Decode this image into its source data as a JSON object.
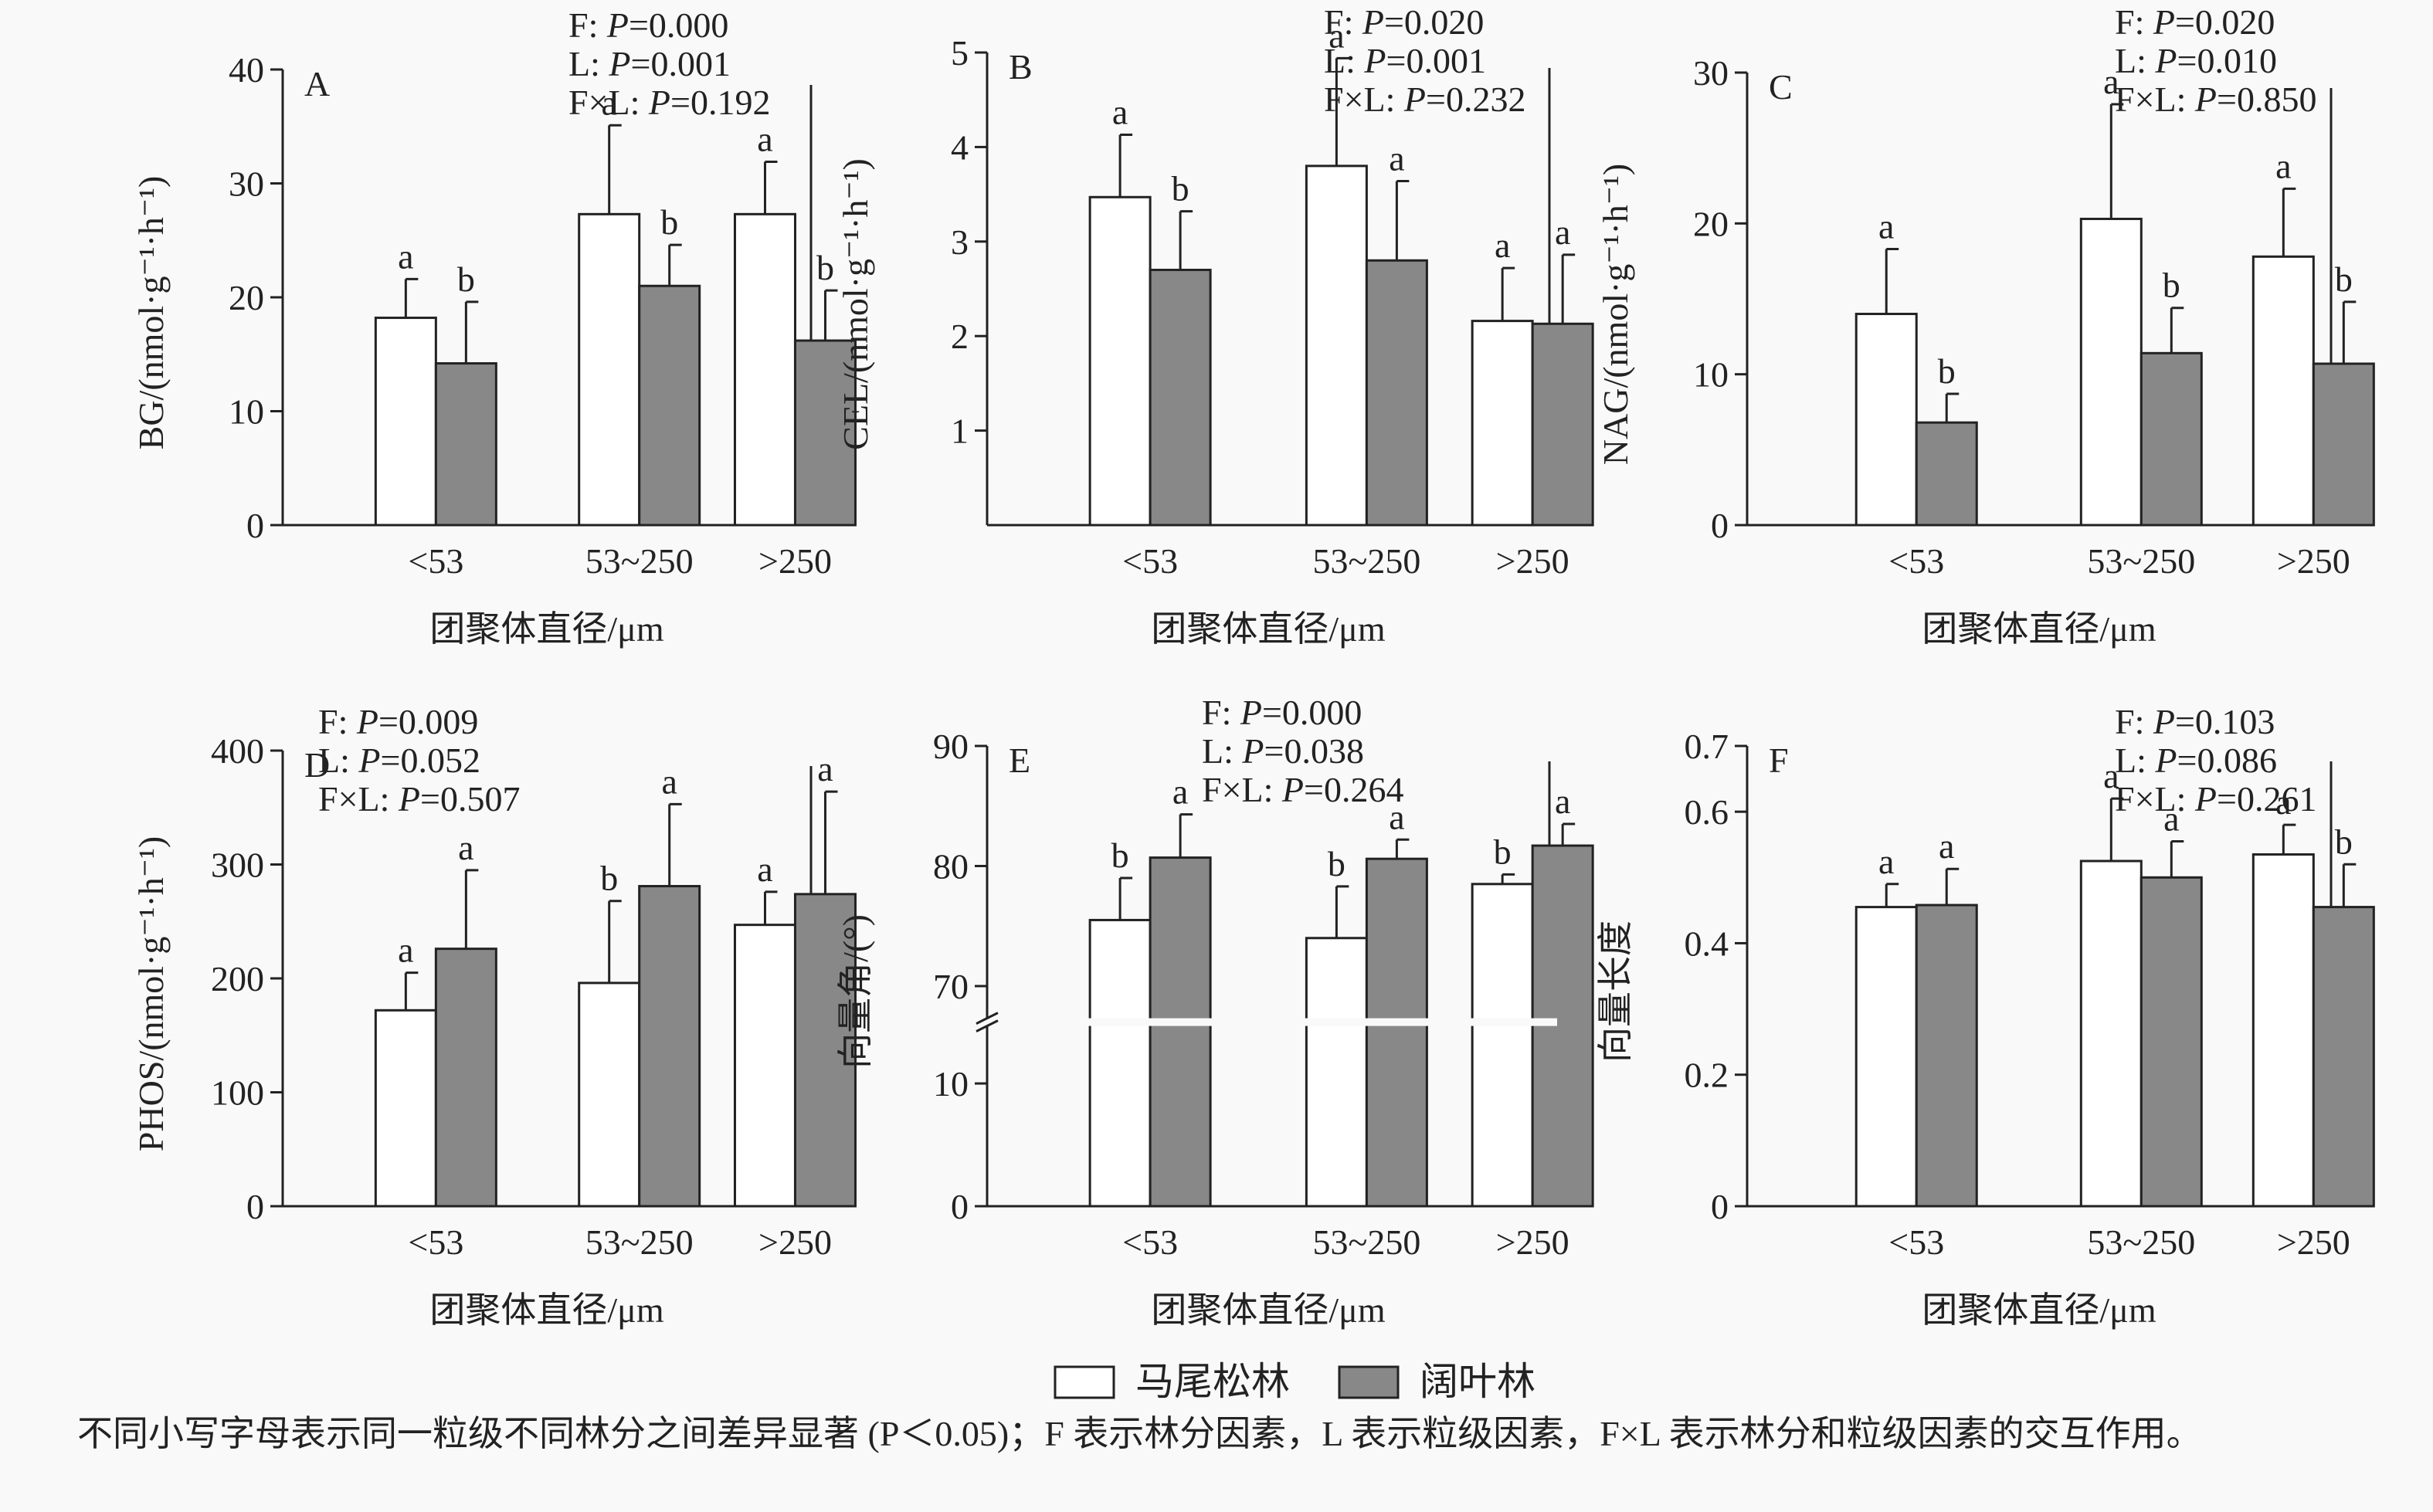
{
  "legend": {
    "series": [
      {
        "name": "马尾松林",
        "color": "#ffffff"
      },
      {
        "name": "阔叶林",
        "color": "#888888"
      }
    ]
  },
  "footnote": "不同小写字母表示同一粒级不同林分之间差异显著 (P＜0.05)；F 表示林分因素，L 表示粒级因素，F×L 表示林分和粒级因素的交互作用。",
  "chart_data": [
    {
      "type": "bar",
      "panel": "A",
      "ylabel": "BG/(nmol·g⁻¹·h⁻¹)",
      "xlabel": "团聚体直径/μm",
      "categories": [
        "<53",
        "53~250",
        ">250"
      ],
      "ylim": [
        0,
        40
      ],
      "yticks": [
        0,
        10,
        20,
        30,
        40
      ],
      "series": [
        {
          "name": "马尾松林",
          "values": [
            18.2,
            27.3,
            27.3
          ],
          "errors": [
            3.4,
            7.8,
            4.6
          ],
          "letters": [
            "a",
            "a",
            "a"
          ]
        },
        {
          "name": "阔叶林",
          "values": [
            14.2,
            21.0,
            16.2
          ],
          "errors": [
            5.4,
            3.6,
            4.4
          ],
          "letters": [
            "b",
            "b",
            "b"
          ]
        }
      ],
      "stats": [
        {
          "prefix": "F: ",
          "p": "P",
          "value": "=0.000"
        },
        {
          "prefix": "L: ",
          "p": "P",
          "value": "=0.001"
        },
        {
          "prefix": "F×L: ",
          "p": "P",
          "value": "=0.192"
        }
      ]
    },
    {
      "type": "bar",
      "panel": "B",
      "ylabel": "CEL/(nmol·g⁻¹·h⁻¹)",
      "xlabel": "团聚体直径/μm",
      "categories": [
        "<53",
        "53~250",
        ">250"
      ],
      "ylim": [
        0,
        5
      ],
      "yticks": [
        1,
        2,
        3,
        4,
        5
      ],
      "series": [
        {
          "name": "马尾松林",
          "values": [
            3.47,
            3.8,
            2.16
          ],
          "errors": [
            0.66,
            1.14,
            0.56
          ],
          "letters": [
            "a",
            "a",
            "a"
          ]
        },
        {
          "name": "阔叶林",
          "values": [
            2.7,
            2.8,
            2.13
          ],
          "errors": [
            0.62,
            0.84,
            0.73
          ],
          "letters": [
            "b",
            "a",
            "a"
          ]
        }
      ],
      "stats": [
        {
          "prefix": "F: ",
          "p": "P",
          "value": "=0.020"
        },
        {
          "prefix": "L: ",
          "p": "P",
          "value": "=0.001"
        },
        {
          "prefix": "F×L: ",
          "p": "P",
          "value": "=0.232"
        }
      ]
    },
    {
      "type": "bar",
      "panel": "C",
      "ylabel": "NAG/(nmol·g⁻¹·h⁻¹)",
      "xlabel": "团聚体直径/μm",
      "categories": [
        "<53",
        "53~250",
        ">250"
      ],
      "ylim": [
        0,
        30
      ],
      "yticks": [
        0,
        10,
        20,
        30
      ],
      "series": [
        {
          "name": "马尾松林",
          "values": [
            14.0,
            20.3,
            17.8
          ],
          "errors": [
            4.3,
            7.6,
            4.5
          ],
          "letters": [
            "a",
            "a",
            "a"
          ]
        },
        {
          "name": "阔叶林",
          "values": [
            6.8,
            11.4,
            10.7
          ],
          "errors": [
            1.9,
            3.0,
            4.1
          ],
          "letters": [
            "b",
            "b",
            "b"
          ]
        }
      ],
      "stats": [
        {
          "prefix": "F: ",
          "p": "P",
          "value": "=0.020"
        },
        {
          "prefix": "L: ",
          "p": "P",
          "value": "=0.010"
        },
        {
          "prefix": "F×L: ",
          "p": "P",
          "value": "=0.850"
        }
      ]
    },
    {
      "type": "bar",
      "panel": "D",
      "ylabel": "PHOS/(nmol·g⁻¹·h⁻¹)",
      "xlabel": "团聚体直径/μm",
      "categories": [
        "<53",
        "53~250",
        ">250"
      ],
      "ylim": [
        0,
        400
      ],
      "yticks": [
        0,
        100,
        200,
        300,
        400
      ],
      "series": [
        {
          "name": "马尾松林",
          "values": [
            172,
            196,
            247
          ],
          "errors": [
            33,
            72,
            29
          ],
          "letters": [
            "a",
            "b",
            "a"
          ]
        },
        {
          "name": "阔叶林",
          "values": [
            226,
            281,
            274
          ],
          "errors": [
            69,
            72,
            90
          ],
          "letters": [
            "a",
            "a",
            "a"
          ]
        }
      ],
      "stats": [
        {
          "prefix": "F: ",
          "p": "P",
          "value": "=0.009"
        },
        {
          "prefix": "L: ",
          "p": "P",
          "value": "=0.052"
        },
        {
          "prefix": "F×L: ",
          "p": "P",
          "value": "=0.507"
        }
      ]
    },
    {
      "type": "bar",
      "panel": "E",
      "ylabel": "向量角/(°)",
      "xlabel": "团聚体直径/μm",
      "categories": [
        "<53",
        "53~250",
        ">250"
      ],
      "ylim": [
        0,
        90
      ],
      "yticks": [
        0,
        10,
        70,
        80,
        90
      ],
      "axis_break": [
        15,
        67
      ],
      "series": [
        {
          "name": "马尾松林",
          "values": [
            75.5,
            74.0,
            78.5
          ],
          "errors": [
            3.5,
            4.3,
            0.8
          ],
          "letters": [
            "b",
            "b",
            "b"
          ]
        },
        {
          "name": "阔叶林",
          "values": [
            80.7,
            80.6,
            81.7
          ],
          "errors": [
            3.6,
            1.6,
            1.8
          ],
          "letters": [
            "a",
            "a",
            "a"
          ]
        }
      ],
      "stats": [
        {
          "prefix": "F: ",
          "p": "P",
          "value": "=0.000"
        },
        {
          "prefix": "L: ",
          "p": "P",
          "value": "=0.038"
        },
        {
          "prefix": "F×L: ",
          "p": "P",
          "value": "=0.264"
        }
      ]
    },
    {
      "type": "bar",
      "panel": "F",
      "ylabel": "向量长度",
      "xlabel": "团聚体直径/μm",
      "categories": [
        "<53",
        "53~250",
        ">250"
      ],
      "ylim": [
        0,
        0.7
      ],
      "yticks": [
        0,
        0.2,
        0.4,
        0.6,
        0.7
      ],
      "series": [
        {
          "name": "马尾松林",
          "values": [
            0.455,
            0.525,
            0.535
          ],
          "errors": [
            0.035,
            0.095,
            0.045
          ],
          "letters": [
            "a",
            "a",
            "a"
          ]
        },
        {
          "name": "阔叶林",
          "values": [
            0.458,
            0.5,
            0.455
          ],
          "errors": [
            0.055,
            0.055,
            0.065
          ],
          "letters": [
            "a",
            "a",
            "b"
          ]
        }
      ],
      "stats": [
        {
          "prefix": "F: ",
          "p": "P",
          "value": "=0.103"
        },
        {
          "prefix": "L: ",
          "p": "P",
          "value": "=0.086"
        },
        {
          "prefix": "F×L: ",
          "p": "P",
          "value": "=0.261"
        }
      ]
    }
  ]
}
